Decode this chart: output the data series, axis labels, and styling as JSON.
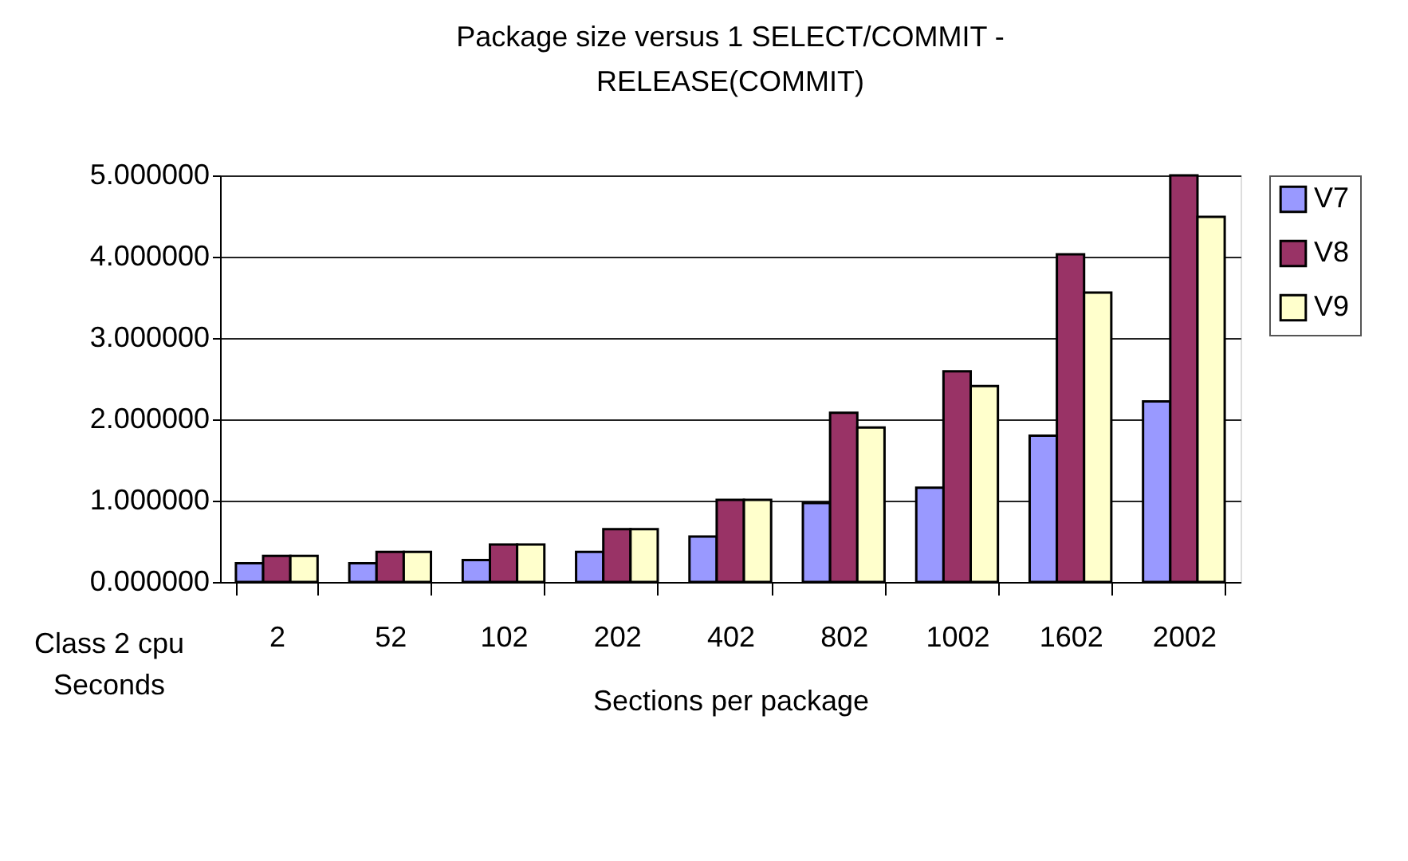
{
  "chart_data": {
    "type": "bar",
    "title": "Package size versus 1 SELECT/COMMIT - RELEASE(COMMIT)",
    "xlabel": "Sections per package",
    "ylabel": "Class 2 cpu Seconds",
    "categories": [
      "2",
      "52",
      "102",
      "202",
      "402",
      "802",
      "1002",
      "1602",
      "2002"
    ],
    "series": [
      {
        "name": "V7",
        "color": "#9999ff",
        "values": [
          0.23,
          0.23,
          0.27,
          0.37,
          0.56,
          0.97,
          1.16,
          1.8,
          2.22
        ]
      },
      {
        "name": "V8",
        "color": "#993366",
        "values": [
          0.32,
          0.37,
          0.46,
          0.65,
          1.01,
          2.08,
          2.59,
          4.03,
          5.0
        ]
      },
      {
        "name": "V9",
        "color": "#ffffcc",
        "values": [
          0.32,
          0.37,
          0.46,
          0.65,
          1.01,
          1.9,
          2.41,
          3.56,
          4.49
        ]
      }
    ],
    "ylim": [
      0,
      5
    ],
    "yticks": [
      {
        "value": 0,
        "label": "0.000000"
      },
      {
        "value": 1,
        "label": "1.000000"
      },
      {
        "value": 2,
        "label": "2.000000"
      },
      {
        "value": 3,
        "label": "3.000000"
      },
      {
        "value": 4,
        "label": "4.000000"
      },
      {
        "value": 5,
        "label": "5.000000"
      }
    ],
    "grid": "y",
    "legend": "right"
  }
}
